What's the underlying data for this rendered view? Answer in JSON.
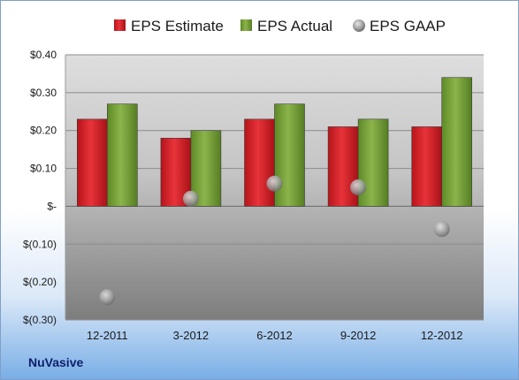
{
  "company": "NuVasive",
  "chart_data": {
    "type": "bar",
    "categories": [
      "12-2011",
      "3-2012",
      "6-2012",
      "9-2012",
      "12-2012"
    ],
    "series": [
      {
        "name": "EPS Estimate",
        "kind": "bar",
        "color": "#e0252b",
        "values": [
          0.23,
          0.18,
          0.23,
          0.21,
          0.21
        ]
      },
      {
        "name": "EPS Actual",
        "kind": "bar",
        "color": "#7aa33a",
        "values": [
          0.27,
          0.2,
          0.27,
          0.23,
          0.34
        ]
      },
      {
        "name": "EPS GAAP",
        "kind": "marker",
        "color": "#9a9a9a",
        "values": [
          -0.24,
          0.02,
          0.06,
          0.05,
          -0.06
        ]
      }
    ],
    "ylim": [
      -0.3,
      0.4
    ],
    "yticks": [
      {
        "value": 0.4,
        "label": "$0.40"
      },
      {
        "value": 0.3,
        "label": "$0.30"
      },
      {
        "value": 0.2,
        "label": "$0.20"
      },
      {
        "value": 0.1,
        "label": "$0.10"
      },
      {
        "value": 0.0,
        "label": "$-"
      },
      {
        "value": -0.1,
        "label": "$(0.10)"
      },
      {
        "value": -0.2,
        "label": "$(0.20)"
      },
      {
        "value": -0.3,
        "label": "$(0.30)"
      }
    ],
    "legend_position": "top",
    "grid": true
  }
}
